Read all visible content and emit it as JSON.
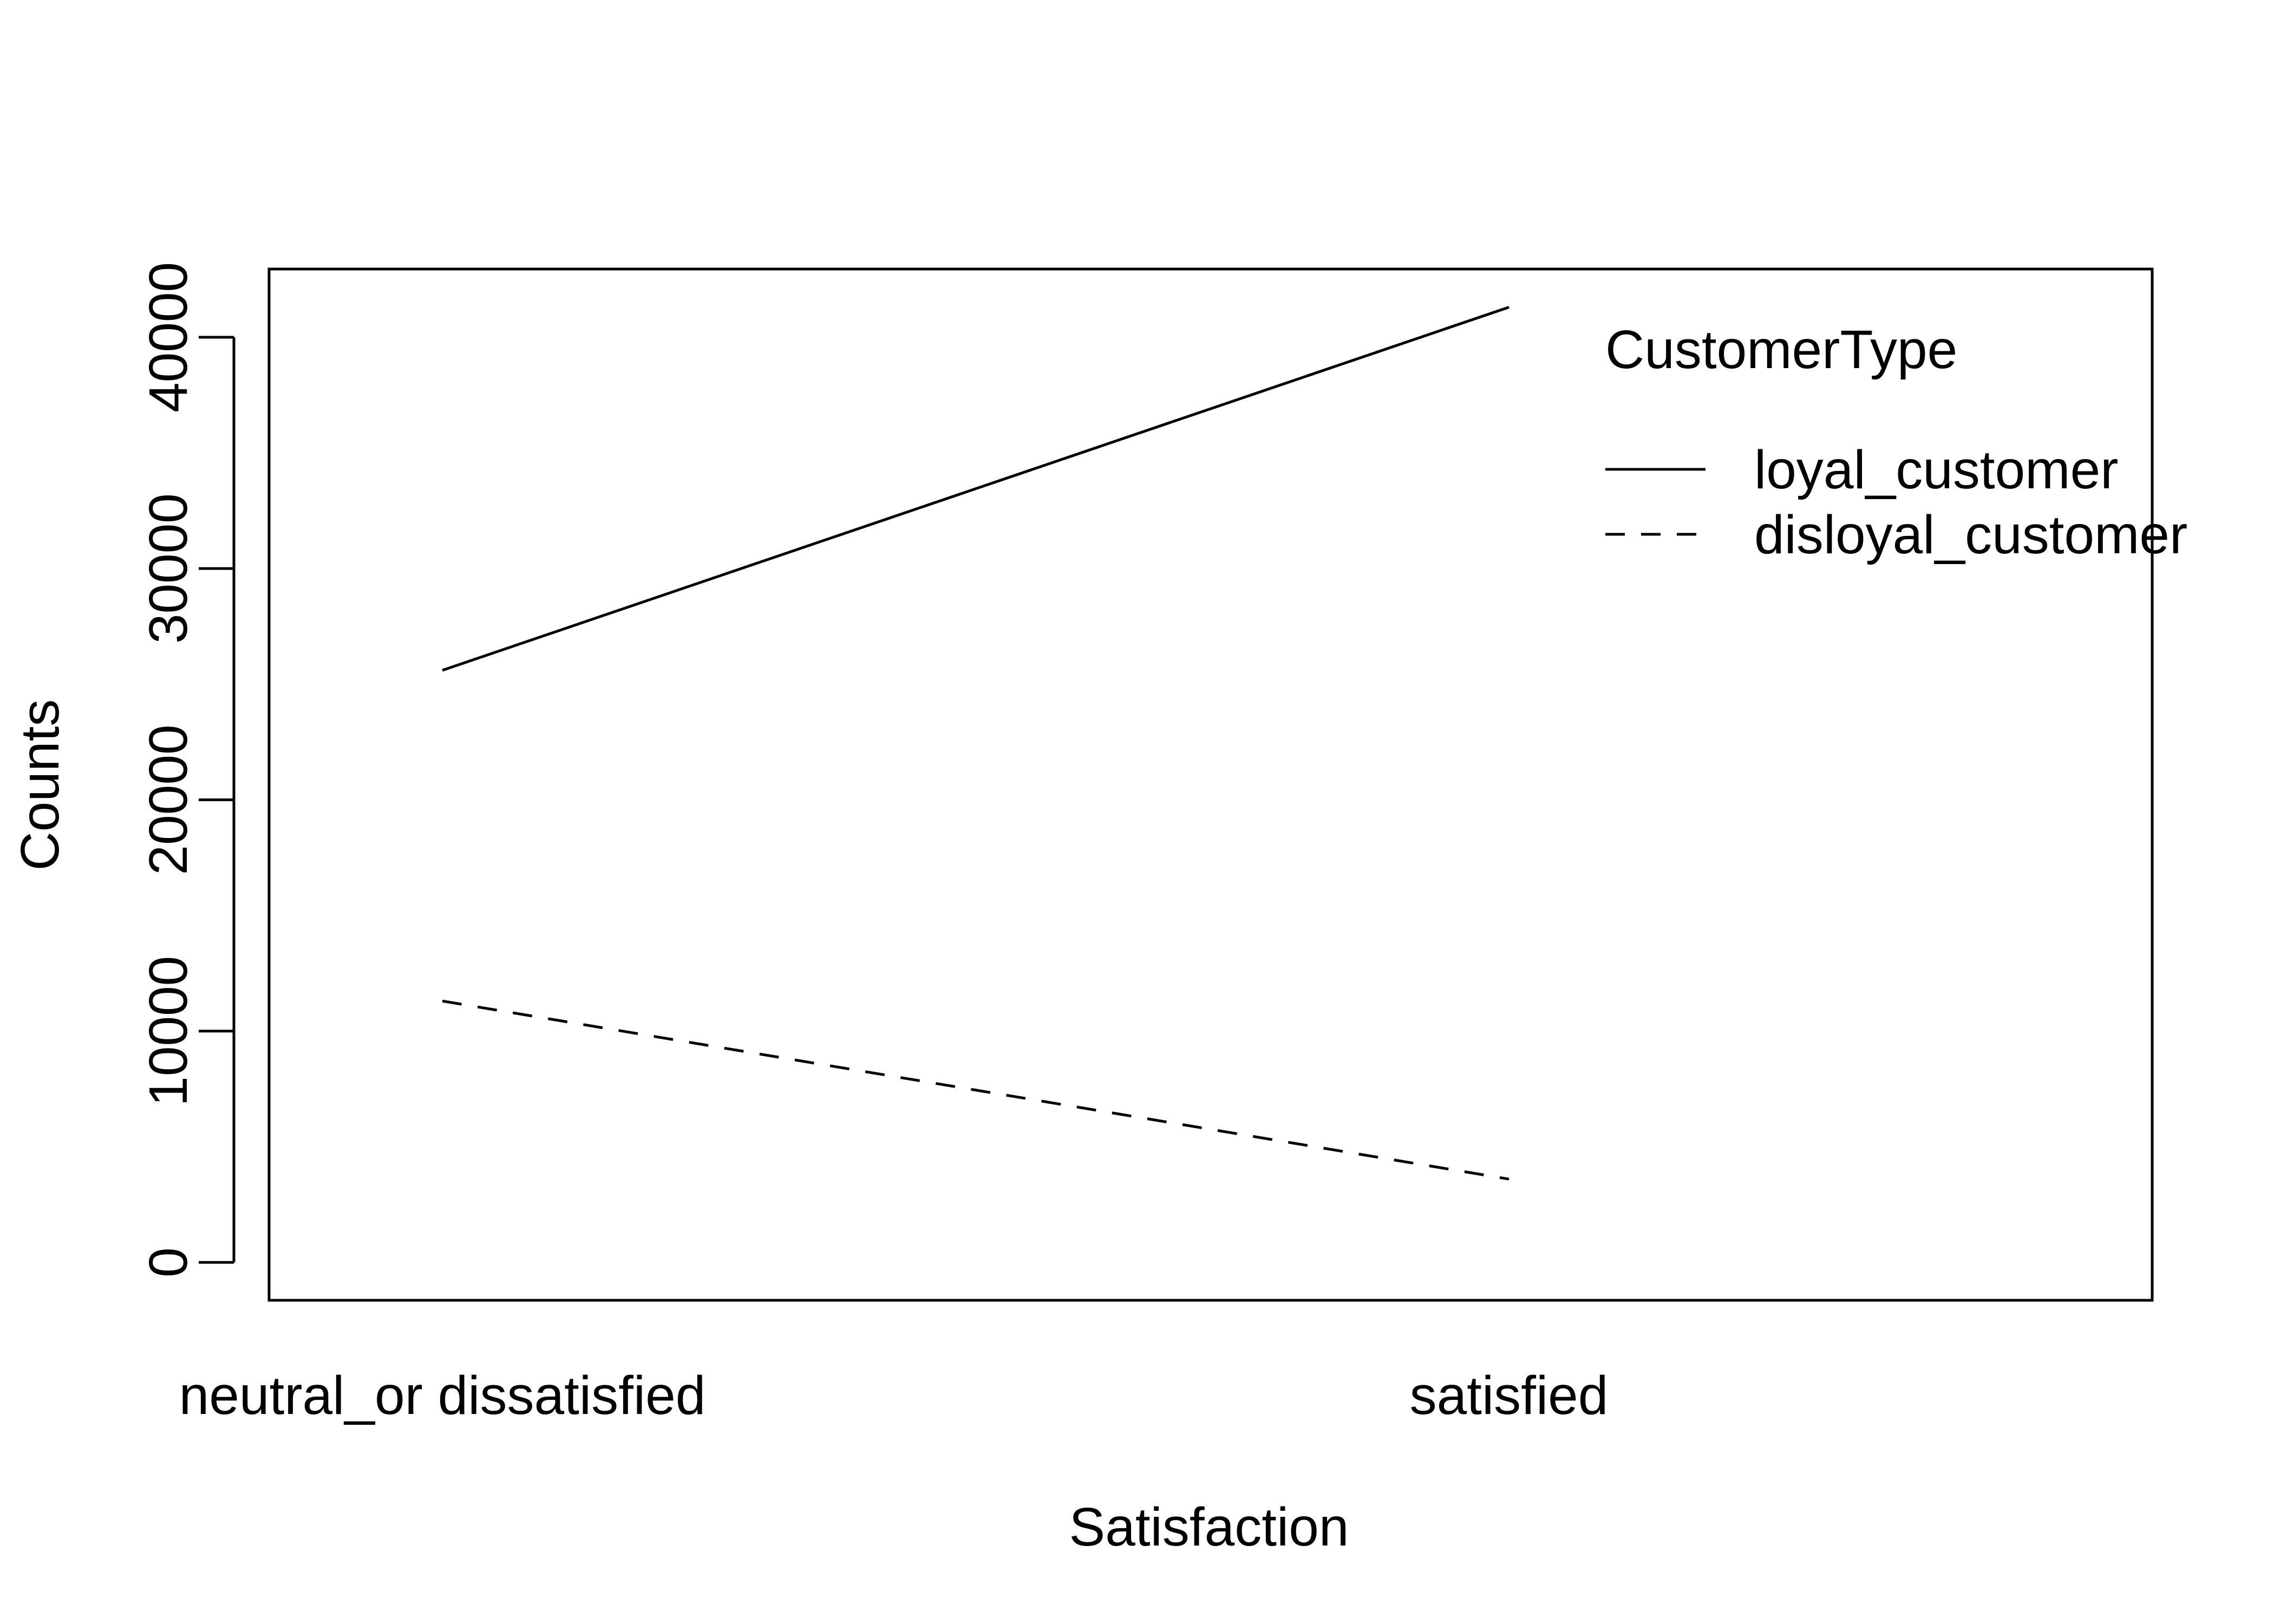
{
  "chart_data": {
    "type": "line",
    "title": "",
    "xlabel": "Satisfaction",
    "ylabel": "Counts",
    "categories": [
      "neutral_or dissatisfied",
      "satisfied"
    ],
    "ylim": [
      0,
      43000
    ],
    "y_ticks": [
      0,
      10000,
      20000,
      30000,
      40000
    ],
    "y_tick_labels": [
      "0",
      "10000",
      "20000",
      "30000",
      "40000"
    ],
    "grid": false,
    "legend": {
      "title": "CustomerType",
      "placement": "top-right"
    },
    "series": [
      {
        "name": "loyal_customer",
        "line_style": "solid",
        "values": [
          25600,
          41300
        ]
      },
      {
        "name": "disloyal_customer",
        "line_style": "dashed",
        "values": [
          11300,
          3600
        ]
      }
    ],
    "colors": {
      "line": "#000000",
      "background": "#ffffff"
    }
  }
}
